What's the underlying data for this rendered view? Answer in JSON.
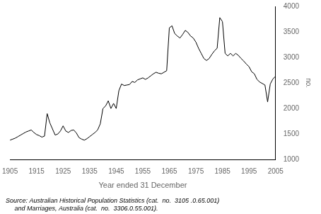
{
  "chart_data": {
    "type": "line",
    "xlabel": "Year ended 31 December",
    "ylabel": "no.",
    "annotations": [
      "Source: Australian Historical Population Statistics (cat.  no.  3105 .0.65.001)",
      "     and Marriages, Australia (cat.  no.  3306.0.55.001)."
    ],
    "x": [
      1905,
      1906,
      1907,
      1908,
      1909,
      1910,
      1911,
      1912,
      1913,
      1914,
      1915,
      1916,
      1917,
      1918,
      1919,
      1920,
      1921,
      1922,
      1923,
      1924,
      1925,
      1926,
      1927,
      1928,
      1929,
      1930,
      1931,
      1932,
      1933,
      1934,
      1935,
      1936,
      1937,
      1938,
      1939,
      1940,
      1941,
      1942,
      1943,
      1944,
      1945,
      1946,
      1947,
      1948,
      1949,
      1950,
      1951,
      1952,
      1953,
      1954,
      1955,
      1956,
      1957,
      1958,
      1959,
      1960,
      1961,
      1962,
      1963,
      1964,
      1965,
      1966,
      1967,
      1968,
      1969,
      1970,
      1971,
      1972,
      1973,
      1974,
      1975,
      1976,
      1977,
      1978,
      1979,
      1980,
      1981,
      1982,
      1983,
      1984,
      1985,
      1986,
      1987,
      1988,
      1989,
      1990,
      1991,
      1992,
      1993,
      1994,
      1995,
      1996,
      1997,
      1998,
      1999,
      2000,
      2001,
      2002,
      2003,
      2004,
      2005
    ],
    "values": [
      1380,
      1400,
      1420,
      1450,
      1480,
      1510,
      1540,
      1560,
      1580,
      1530,
      1490,
      1470,
      1440,
      1460,
      1900,
      1720,
      1600,
      1480,
      1500,
      1560,
      1660,
      1560,
      1530,
      1570,
      1580,
      1520,
      1430,
      1400,
      1380,
      1410,
      1450,
      1490,
      1530,
      1580,
      1700,
      2000,
      2050,
      2150,
      2000,
      2100,
      2000,
      2350,
      2480,
      2450,
      2460,
      2470,
      2530,
      2510,
      2560,
      2580,
      2600,
      2570,
      2600,
      2640,
      2680,
      2710,
      2690,
      2680,
      2710,
      2740,
      3580,
      3620,
      3470,
      3420,
      3380,
      3450,
      3530,
      3490,
      3420,
      3380,
      3300,
      3180,
      3080,
      2980,
      2940,
      2980,
      3060,
      3130,
      3180,
      3780,
      3700,
      3080,
      3030,
      3080,
      3030,
      3080,
      3040,
      2980,
      2930,
      2870,
      2820,
      2720,
      2680,
      2570,
      2520,
      2490,
      2460,
      2130,
      2480,
      2580,
      2630
    ],
    "color": "#000000",
    "xlim": [
      1905,
      2005
    ],
    "xticks": [
      1905,
      1915,
      1925,
      1935,
      1945,
      1955,
      1965,
      1975,
      1985,
      1995,
      2005
    ],
    "ylim": [
      1000,
      4000
    ],
    "yticks": [
      1000,
      1500,
      2000,
      2500,
      3000,
      3500,
      4000
    ],
    "grid": false
  }
}
